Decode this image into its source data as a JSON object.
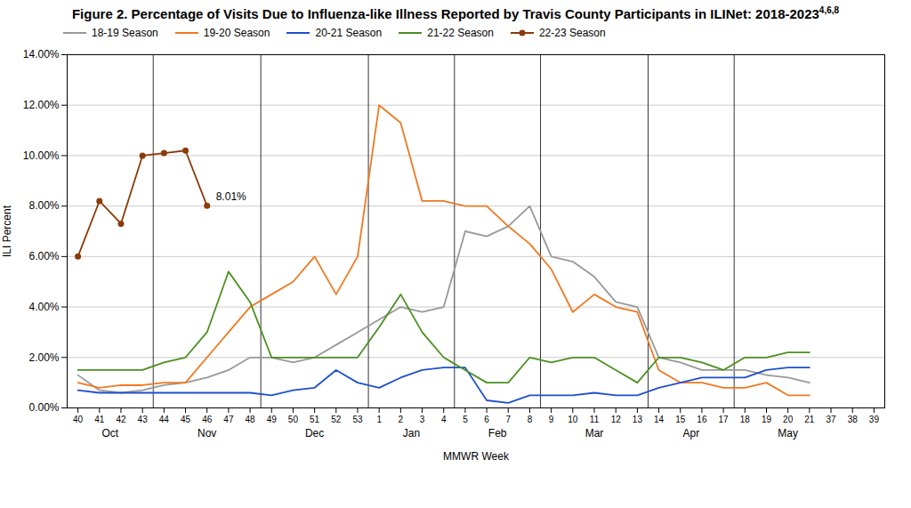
{
  "chart_data": {
    "type": "line",
    "title": "Figure 2.  Percentage of Visits Due to Influenza-like Illness Reported by Travis County Participants in ILINet: 2018-2023",
    "title_superscript": "4,6,8",
    "xlabel": "MMWR Week",
    "ylabel": "ILI Percent",
    "categories": [
      "40",
      "41",
      "42",
      "43",
      "44",
      "45",
      "46",
      "47",
      "48",
      "49",
      "50",
      "51",
      "52",
      "53",
      "1",
      "2",
      "3",
      "4",
      "5",
      "6",
      "7",
      "8",
      "9",
      "10",
      "11",
      "12",
      "13",
      "14",
      "15",
      "16",
      "17",
      "18",
      "19",
      "20",
      "21",
      "37",
      "38",
      "39"
    ],
    "months": [
      {
        "label": "Oct",
        "first": "40",
        "last": "43"
      },
      {
        "label": "Nov",
        "first": "44",
        "last": "48"
      },
      {
        "label": "Dec",
        "first": "49",
        "last": "53"
      },
      {
        "label": "Jan",
        "first": "1",
        "last": "4"
      },
      {
        "label": "Feb",
        "first": "5",
        "last": "8"
      },
      {
        "label": "Mar",
        "first": "9",
        "last": "13"
      },
      {
        "label": "Apr",
        "first": "14",
        "last": "17"
      },
      {
        "label": "May",
        "first": "18",
        "last": "37"
      }
    ],
    "ylim": [
      0.0,
      0.14
    ],
    "yticks": [
      {
        "value": 0.0,
        "label": "0.00%"
      },
      {
        "value": 0.02,
        "label": "2.00%"
      },
      {
        "value": 0.04,
        "label": "4.00%"
      },
      {
        "value": 0.06,
        "label": "6.00%"
      },
      {
        "value": 0.08,
        "label": "8.00%"
      },
      {
        "value": 0.1,
        "label": "10.00%"
      },
      {
        "value": 0.12,
        "label": "12.00%"
      },
      {
        "value": 0.14,
        "label": "14.00%"
      }
    ],
    "grid": true,
    "legend": "top",
    "annotations": [
      {
        "text": "8.01%",
        "x": "46",
        "y": 0.0801
      }
    ],
    "series": [
      {
        "name": "18-19 Season",
        "color": "#999999",
        "values": [
          0.013,
          0.007,
          0.006,
          0.007,
          0.009,
          0.01,
          0.012,
          0.015,
          0.02,
          0.02,
          0.018,
          0.02,
          0.025,
          0.03,
          0.035,
          0.04,
          0.038,
          0.04,
          0.07,
          0.068,
          0.072,
          0.08,
          0.06,
          0.058,
          0.052,
          0.042,
          0.04,
          0.02,
          0.018,
          0.015,
          0.015,
          0.015,
          0.013,
          0.012,
          0.01,
          null,
          null,
          null
        ]
      },
      {
        "name": "19-20 Season",
        "color": "#f07820",
        "values": [
          0.01,
          0.008,
          0.009,
          0.009,
          0.01,
          0.01,
          0.02,
          0.03,
          0.04,
          0.045,
          0.05,
          0.06,
          0.045,
          0.06,
          0.12,
          0.113,
          0.082,
          0.082,
          0.08,
          0.08,
          0.072,
          0.065,
          0.055,
          0.038,
          0.045,
          0.04,
          0.038,
          0.015,
          0.01,
          0.01,
          0.008,
          0.008,
          0.01,
          0.005,
          0.005,
          null,
          null,
          null
        ]
      },
      {
        "name": "20-21 Season",
        "color": "#1f4fcc",
        "values": [
          0.007,
          0.006,
          0.006,
          0.006,
          0.006,
          0.006,
          0.006,
          0.006,
          0.006,
          0.005,
          0.007,
          0.008,
          0.015,
          0.01,
          0.008,
          0.012,
          0.015,
          0.016,
          0.016,
          0.003,
          0.002,
          0.005,
          0.005,
          0.005,
          0.006,
          0.005,
          0.005,
          0.008,
          0.01,
          0.012,
          0.012,
          0.012,
          0.015,
          0.016,
          0.016,
          null,
          null,
          null
        ]
      },
      {
        "name": "21-22 Season",
        "color": "#4a9020",
        "values": [
          0.015,
          0.015,
          0.015,
          0.015,
          0.018,
          0.02,
          0.03,
          0.054,
          0.042,
          0.02,
          0.02,
          0.02,
          0.02,
          0.02,
          0.032,
          0.045,
          0.03,
          0.02,
          0.015,
          0.01,
          0.01,
          0.02,
          0.018,
          0.02,
          0.02,
          0.015,
          0.01,
          0.02,
          0.02,
          0.018,
          0.015,
          0.02,
          0.02,
          0.022,
          0.022,
          null,
          null,
          null
        ]
      },
      {
        "name": "22-23 Season",
        "color": "#8B3A0A",
        "marker": "circle",
        "values": [
          0.06,
          0.082,
          0.073,
          0.1,
          0.101,
          0.102,
          0.0801,
          null,
          null,
          null,
          null,
          null,
          null,
          null,
          null,
          null,
          null,
          null,
          null,
          null,
          null,
          null,
          null,
          null,
          null,
          null,
          null,
          null,
          null,
          null,
          null,
          null,
          null,
          null,
          null,
          null,
          null,
          null
        ]
      }
    ]
  }
}
